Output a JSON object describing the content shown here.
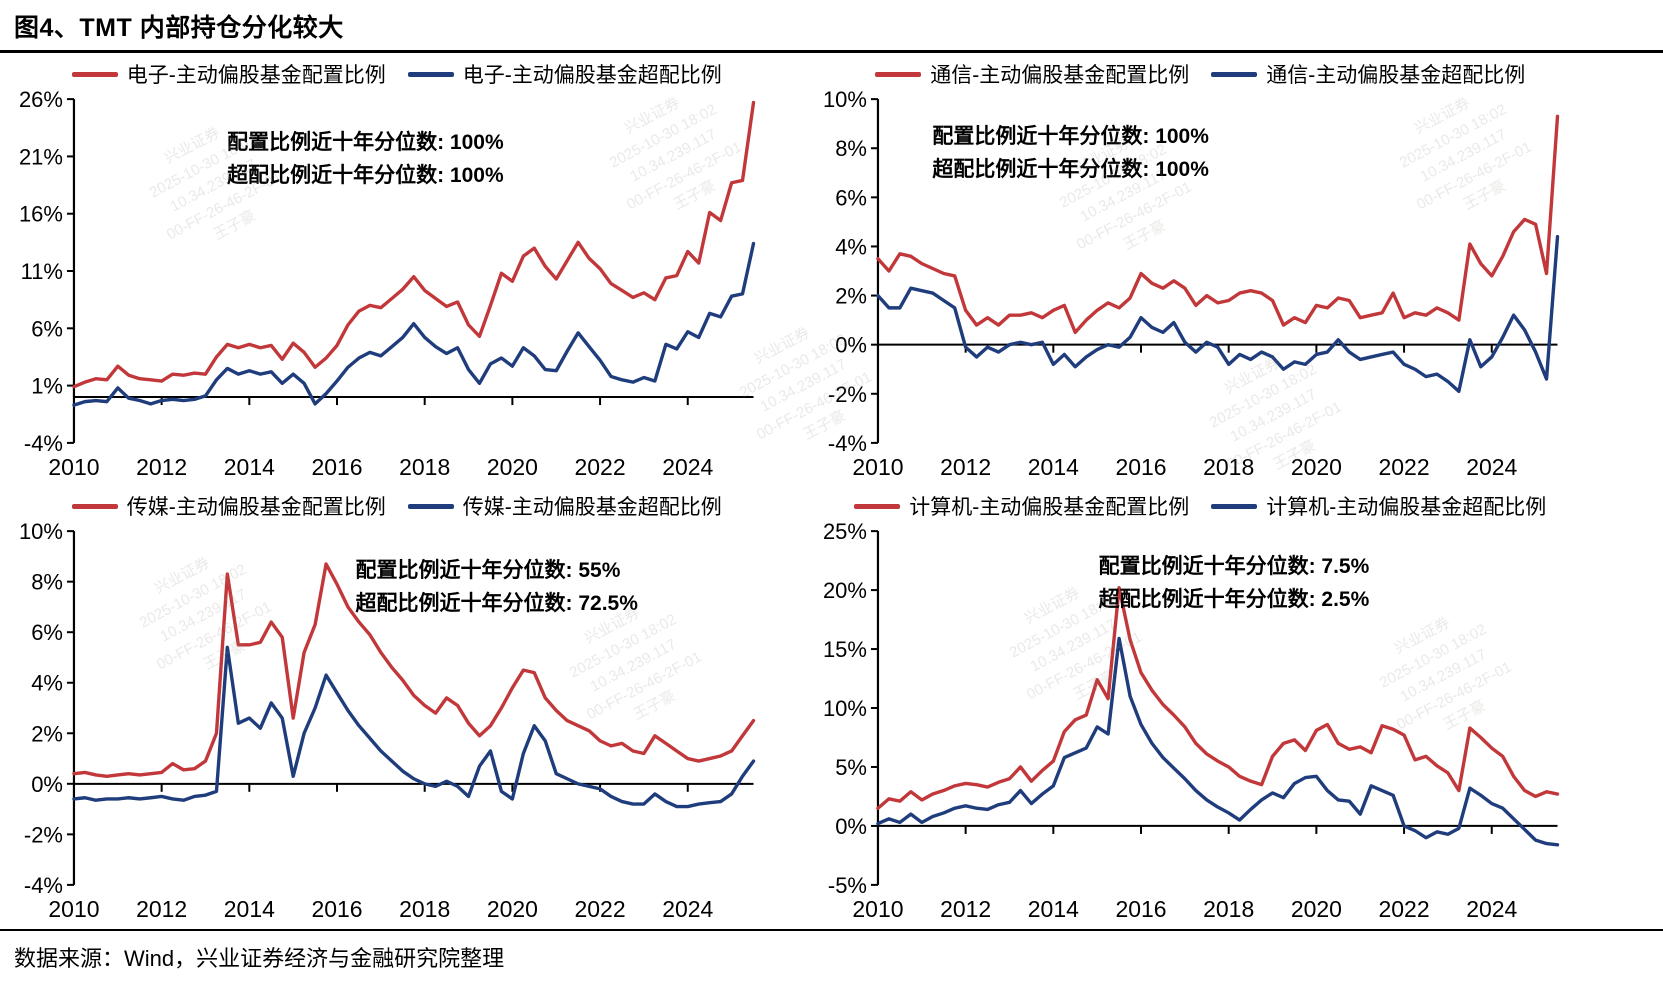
{
  "page": {
    "title": "图4、TMT 内部持仓分化较大",
    "source": "数据来源：Wind，兴业证券经济与金融研究院整理"
  },
  "watermark": {
    "lines": [
      "兴业证券",
      "2025-10-30 18:02",
      "10.34.239.117",
      "00-FF-26-46-2F-01",
      "王子豪"
    ]
  },
  "chart_data": [
    {
      "type": "line",
      "sector": "电子",
      "title": "",
      "xlabel": "",
      "ylabel": "",
      "grid": false,
      "legend_position": "top",
      "xlim": [
        2010,
        2025.5
      ],
      "ylim": [
        -4,
        26
      ],
      "x_start": 2010,
      "x_step": 0.25,
      "xticks": [
        "2010",
        "2012",
        "2014",
        "2016",
        "2018",
        "2020",
        "2022",
        "2024"
      ],
      "yticks": [
        "26%",
        "21%",
        "16%",
        "11%",
        "6%",
        "1%",
        "-4%"
      ],
      "annotation": [
        "配置比例近十年分位数: 100%",
        "超配比例近十年分位数: 100%"
      ],
      "series": [
        {
          "name": "电子-主动偏股基金配置比例",
          "color": "#c2383a",
          "values": [
            0.9,
            1.3,
            1.6,
            1.5,
            2.7,
            1.9,
            1.6,
            1.5,
            1.4,
            2.0,
            1.9,
            2.1,
            2.0,
            3.5,
            4.6,
            4.3,
            4.6,
            4.3,
            4.5,
            3.3,
            4.7,
            3.9,
            2.6,
            3.4,
            4.5,
            6.3,
            7.5,
            8.0,
            7.8,
            8.6,
            9.4,
            10.5,
            9.3,
            8.6,
            7.9,
            8.3,
            6.3,
            5.3,
            8.0,
            10.8,
            10.1,
            12.3,
            13.0,
            11.4,
            10.3,
            11.9,
            13.5,
            12.1,
            11.2,
            9.9,
            9.3,
            8.7,
            9.1,
            8.5,
            10.4,
            10.6,
            12.7,
            11.7,
            16.1,
            15.4,
            18.7,
            18.9,
            25.7
          ]
        },
        {
          "name": "电子-主动偏股基金超配比例",
          "color": "#1f3d7c",
          "values": [
            -0.7,
            -0.4,
            -0.3,
            -0.4,
            0.8,
            -0.1,
            -0.3,
            -0.6,
            -0.3,
            -0.2,
            -0.3,
            -0.2,
            0.1,
            1.5,
            2.5,
            2.0,
            2.3,
            2.0,
            2.2,
            1.2,
            2.0,
            1.2,
            -0.6,
            0.3,
            1.4,
            2.6,
            3.4,
            3.9,
            3.6,
            4.4,
            5.2,
            6.4,
            5.2,
            4.4,
            3.8,
            4.3,
            2.4,
            1.2,
            2.9,
            3.4,
            2.7,
            4.3,
            3.6,
            2.4,
            2.3,
            4.0,
            5.6,
            4.4,
            3.2,
            1.8,
            1.5,
            1.3,
            1.7,
            1.4,
            4.6,
            4.2,
            5.7,
            5.2,
            7.3,
            7.0,
            8.8,
            9.0,
            13.4
          ]
        }
      ]
    },
    {
      "type": "line",
      "sector": "通信",
      "title": "",
      "xlabel": "",
      "ylabel": "",
      "grid": false,
      "legend_position": "top",
      "xlim": [
        2010,
        2025.5
      ],
      "ylim": [
        -4,
        10
      ],
      "x_start": 2010,
      "x_step": 0.25,
      "xticks": [
        "2010",
        "2012",
        "2014",
        "2016",
        "2018",
        "2020",
        "2022",
        "2024"
      ],
      "yticks": [
        "10%",
        "8%",
        "6%",
        "4%",
        "2%",
        "0%",
        "-2%",
        "-4%"
      ],
      "annotation": [
        "配置比例近十年分位数: 100%",
        "超配比例近十年分位数: 100%"
      ],
      "series": [
        {
          "name": "通信-主动偏股基金配置比例",
          "color": "#c2383a",
          "values": [
            3.5,
            3.0,
            3.7,
            3.6,
            3.3,
            3.1,
            2.9,
            2.8,
            1.4,
            0.8,
            1.1,
            0.8,
            1.2,
            1.2,
            1.3,
            1.1,
            1.4,
            1.6,
            0.5,
            1.0,
            1.4,
            1.7,
            1.5,
            1.9,
            2.9,
            2.5,
            2.3,
            2.6,
            2.3,
            1.6,
            2.0,
            1.7,
            1.8,
            2.1,
            2.2,
            2.1,
            1.8,
            0.8,
            1.1,
            0.9,
            1.6,
            1.5,
            1.9,
            1.8,
            1.1,
            1.2,
            1.3,
            2.1,
            1.1,
            1.3,
            1.2,
            1.5,
            1.3,
            1.0,
            4.1,
            3.3,
            2.8,
            3.6,
            4.6,
            5.1,
            4.9,
            2.9,
            9.3
          ]
        },
        {
          "name": "通信-主动偏股基金超配比例",
          "color": "#1f3d7c",
          "values": [
            2.0,
            1.5,
            1.5,
            2.3,
            2.2,
            2.1,
            1.8,
            1.5,
            -0.1,
            -0.5,
            -0.1,
            -0.3,
            0.0,
            0.1,
            0.0,
            0.1,
            -0.8,
            -0.4,
            -0.9,
            -0.5,
            -0.2,
            0.0,
            -0.1,
            0.3,
            1.1,
            0.7,
            0.5,
            0.9,
            0.1,
            -0.3,
            0.1,
            -0.1,
            -0.8,
            -0.4,
            -0.6,
            -0.3,
            -0.5,
            -1.0,
            -0.7,
            -0.8,
            -0.4,
            -0.3,
            0.2,
            -0.3,
            -0.6,
            -0.5,
            -0.4,
            -0.3,
            -0.8,
            -1.0,
            -1.3,
            -1.2,
            -1.5,
            -1.9,
            0.2,
            -0.9,
            -0.5,
            0.3,
            1.2,
            0.6,
            -0.3,
            -1.4,
            4.4
          ]
        }
      ]
    },
    {
      "type": "line",
      "sector": "传媒",
      "title": "",
      "xlabel": "",
      "ylabel": "",
      "grid": false,
      "legend_position": "top",
      "xlim": [
        2010,
        2025.5
      ],
      "ylim": [
        -4,
        10
      ],
      "x_start": 2010,
      "x_step": 0.25,
      "xticks": [
        "2010",
        "2012",
        "2014",
        "2016",
        "2018",
        "2020",
        "2022",
        "2024"
      ],
      "yticks": [
        "10%",
        "8%",
        "6%",
        "4%",
        "2%",
        "0%",
        "-2%",
        "-4%"
      ],
      "annotation": [
        "配置比例近十年分位数: 55%",
        "超配比例近十年分位数: 72.5%"
      ],
      "series": [
        {
          "name": "传媒-主动偏股基金配置比例",
          "color": "#c2383a",
          "values": [
            0.4,
            0.45,
            0.35,
            0.3,
            0.35,
            0.4,
            0.35,
            0.4,
            0.45,
            0.8,
            0.55,
            0.6,
            0.9,
            2.0,
            8.3,
            5.5,
            5.5,
            5.6,
            6.4,
            5.8,
            2.6,
            5.2,
            6.3,
            8.7,
            7.9,
            7.0,
            6.4,
            5.9,
            5.2,
            4.6,
            4.1,
            3.5,
            3.1,
            2.8,
            3.4,
            3.1,
            2.4,
            1.9,
            2.3,
            3.0,
            3.8,
            4.5,
            4.4,
            3.4,
            2.9,
            2.5,
            2.3,
            2.1,
            1.7,
            1.5,
            1.6,
            1.3,
            1.2,
            1.9,
            1.6,
            1.3,
            1.0,
            0.9,
            1.0,
            1.1,
            1.3,
            1.9,
            2.5
          ]
        },
        {
          "name": "传媒-主动偏股基金超配比例",
          "color": "#1f3d7c",
          "values": [
            -0.6,
            -0.55,
            -0.65,
            -0.6,
            -0.6,
            -0.55,
            -0.6,
            -0.55,
            -0.5,
            -0.6,
            -0.65,
            -0.5,
            -0.45,
            -0.3,
            5.4,
            2.4,
            2.6,
            2.2,
            3.2,
            2.6,
            0.3,
            2.0,
            3.0,
            4.3,
            3.6,
            2.9,
            2.3,
            1.8,
            1.3,
            0.9,
            0.5,
            0.2,
            0.0,
            -0.1,
            0.1,
            -0.1,
            -0.5,
            0.7,
            1.3,
            -0.3,
            -0.6,
            1.2,
            2.3,
            1.7,
            0.4,
            0.2,
            0.0,
            -0.1,
            -0.2,
            -0.5,
            -0.7,
            -0.8,
            -0.8,
            -0.4,
            -0.7,
            -0.9,
            -0.9,
            -0.8,
            -0.75,
            -0.7,
            -0.4,
            0.3,
            0.9
          ]
        }
      ]
    },
    {
      "type": "line",
      "sector": "计算机",
      "title": "",
      "xlabel": "",
      "ylabel": "",
      "grid": false,
      "legend_position": "top",
      "xlim": [
        2010,
        2025.5
      ],
      "ylim": [
        -5,
        25
      ],
      "x_start": 2010,
      "x_step": 0.25,
      "xticks": [
        "2010",
        "2012",
        "2014",
        "2016",
        "2018",
        "2020",
        "2022",
        "2024"
      ],
      "yticks": [
        "25%",
        "20%",
        "15%",
        "10%",
        "5%",
        "0%",
        "-5%"
      ],
      "annotation": [
        "配置比例近十年分位数: 7.5%",
        "超配比例近十年分位数: 2.5%"
      ],
      "series": [
        {
          "name": "计算机-主动偏股基金配置比例",
          "color": "#c2383a",
          "values": [
            1.5,
            2.3,
            2.1,
            2.9,
            2.2,
            2.7,
            3.0,
            3.4,
            3.6,
            3.5,
            3.3,
            3.7,
            4.0,
            5.0,
            3.8,
            4.7,
            5.5,
            8.0,
            9.0,
            9.4,
            12.4,
            10.8,
            20.2,
            15.8,
            13.0,
            11.5,
            10.3,
            9.4,
            8.4,
            7.0,
            6.1,
            5.5,
            5.0,
            4.2,
            3.8,
            3.5,
            5.9,
            7.0,
            7.3,
            6.4,
            8.1,
            8.6,
            7.0,
            6.5,
            6.7,
            6.2,
            8.5,
            8.2,
            7.7,
            5.6,
            5.9,
            5.1,
            4.5,
            3.0,
            8.3,
            7.5,
            6.6,
            5.9,
            4.2,
            3.0,
            2.5,
            2.9,
            2.7
          ]
        },
        {
          "name": "计算机-主动偏股基金超配比例",
          "color": "#1f3d7c",
          "values": [
            0.2,
            0.6,
            0.3,
            1.0,
            0.3,
            0.8,
            1.1,
            1.5,
            1.7,
            1.5,
            1.4,
            1.8,
            2.0,
            3.0,
            1.9,
            2.7,
            3.4,
            5.8,
            6.2,
            6.6,
            8.4,
            7.8,
            15.9,
            11.0,
            8.6,
            7.0,
            5.8,
            4.9,
            4.0,
            3.0,
            2.2,
            1.6,
            1.1,
            0.5,
            1.4,
            2.2,
            2.8,
            2.4,
            3.6,
            4.1,
            4.2,
            3.0,
            2.2,
            2.1,
            1.0,
            3.4,
            3.0,
            2.6,
            0.0,
            -0.4,
            -1.0,
            -0.5,
            -0.7,
            -0.2,
            3.2,
            2.6,
            1.9,
            1.5,
            0.6,
            -0.3,
            -1.2,
            -1.5,
            -1.6
          ]
        }
      ]
    }
  ]
}
